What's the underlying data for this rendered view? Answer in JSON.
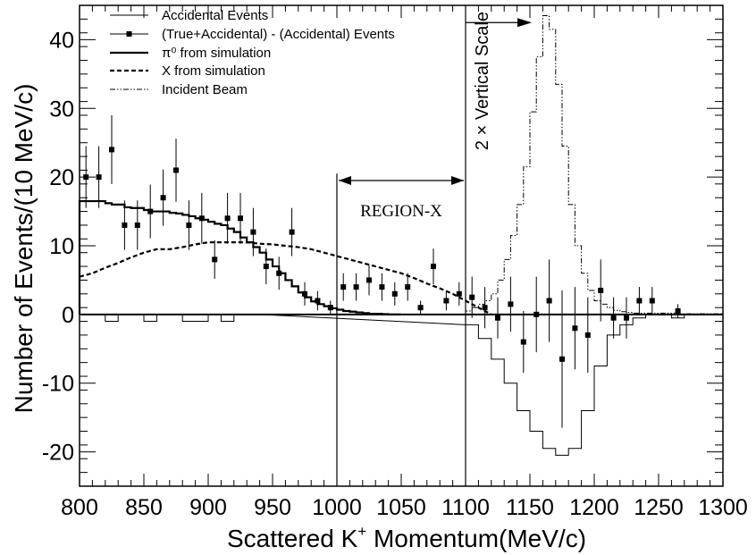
{
  "chart_data": {
    "type": "line",
    "xlabel": "Scattered K",
    "xlabel_sup": "+",
    "xlabel_rest": " Momentum(MeV/c)",
    "ylabel": "Number of Events/(10 MeV/c)",
    "xlim": [
      800,
      1300
    ],
    "ylim": [
      -25,
      45
    ],
    "x_ticks": [
      800,
      850,
      900,
      950,
      1000,
      1050,
      1100,
      1150,
      1200,
      1250,
      1300
    ],
    "y_ticks": [
      -20,
      -10,
      0,
      10,
      20,
      30,
      40
    ],
    "grid": false,
    "legend_position": "top-left",
    "annotations": {
      "region_label": "REGION-X",
      "region_range": [
        1000,
        1100
      ],
      "vertical_scale_label": "2 × Vertical Scale"
    },
    "series": [
      {
        "name": "Accidental Events",
        "style": "thin-solid-histogram",
        "bin_width": 10,
        "x": [
          800,
          810,
          820,
          830,
          840,
          850,
          860,
          870,
          880,
          890,
          900,
          910,
          920,
          930,
          1100,
          1110,
          1120,
          1130,
          1140,
          1150,
          1160,
          1170,
          1180,
          1190,
          1200,
          1210,
          1220,
          1230,
          1240,
          1250,
          1260,
          1270
        ],
        "values": [
          0,
          0,
          -1,
          0,
          0,
          -1,
          0,
          0,
          -1,
          -1,
          0,
          -1,
          0,
          0,
          -1.5,
          -3.5,
          -6.5,
          -10,
          -14,
          -17,
          -19.5,
          -20.5,
          -19.5,
          -14,
          -7.5,
          -3,
          -1.5,
          -0.5,
          0,
          0,
          -0.5,
          0
        ]
      },
      {
        "name": "(True+Accidental) - (Accidental) Events",
        "style": "points-with-errorbars",
        "x": [
          805,
          815,
          825,
          835,
          845,
          855,
          865,
          875,
          885,
          895,
          905,
          915,
          925,
          935,
          945,
          955,
          965,
          975,
          985,
          995,
          1005,
          1015,
          1025,
          1035,
          1045,
          1055,
          1065,
          1075,
          1085,
          1095,
          1105,
          1115,
          1125,
          1135,
          1145,
          1155,
          1165,
          1175,
          1185,
          1195,
          1205,
          1215,
          1225,
          1235,
          1245,
          1265
        ],
        "values": [
          20,
          20,
          24,
          13,
          13,
          15,
          17,
          21,
          13,
          14,
          8,
          14,
          14,
          12,
          7,
          6,
          12,
          3,
          2,
          1,
          4,
          4,
          5,
          4,
          3,
          4,
          1,
          7,
          2,
          3,
          2.5,
          1,
          -0.5,
          1.5,
          -4,
          0,
          2,
          -6.5,
          -2,
          -3,
          3.5,
          -0.5,
          -0.5,
          2,
          2,
          0.5
        ],
        "errors": [
          4.5,
          4.5,
          5,
          3.6,
          3.6,
          3.9,
          4.1,
          4.6,
          3.6,
          3.7,
          2.8,
          3.7,
          3.7,
          3.5,
          2.6,
          2.4,
          3.5,
          1.7,
          1.4,
          1,
          2,
          2,
          2.2,
          2,
          1.7,
          2,
          1,
          2.6,
          1.4,
          1.7,
          3,
          3,
          3,
          4,
          4.5,
          5.5,
          6,
          10,
          6,
          5.5,
          4.5,
          3,
          3,
          2,
          2,
          1
        ]
      },
      {
        "name": "π⁰ from simulation",
        "style": "thick-solid-histogram",
        "bin_width": 5,
        "x": [
          800,
          805,
          810,
          815,
          820,
          825,
          830,
          835,
          840,
          845,
          850,
          855,
          860,
          865,
          870,
          875,
          880,
          885,
          890,
          895,
          900,
          905,
          910,
          915,
          920,
          925,
          930,
          935,
          940,
          945,
          950,
          955,
          960,
          965,
          970,
          975,
          980,
          985,
          990,
          995,
          1000,
          1005,
          1010,
          1015,
          1020,
          1025,
          1030,
          1035,
          1040,
          1045
        ],
        "values": [
          16.5,
          16.5,
          16.5,
          16.5,
          16.2,
          16,
          16,
          15.6,
          15.5,
          15.5,
          15.2,
          15,
          15,
          15,
          14.8,
          14.7,
          14.5,
          14.3,
          14,
          13.8,
          13.5,
          13.2,
          13,
          12.5,
          12,
          11.2,
          10.5,
          9.8,
          9,
          8,
          7,
          6,
          5,
          4.1,
          3.2,
          2.5,
          1.9,
          1.5,
          1.2,
          0.9,
          0.7,
          0.5,
          0.4,
          0.3,
          0.2,
          0.1,
          0.1,
          0.05,
          0,
          0
        ]
      },
      {
        "name": "X from simulation",
        "style": "dashed-line",
        "x": [
          800,
          810,
          820,
          830,
          840,
          850,
          860,
          870,
          880,
          890,
          900,
          910,
          920,
          930,
          940,
          950,
          960,
          970,
          980,
          990,
          1000,
          1010,
          1020,
          1030,
          1040,
          1050,
          1060,
          1070,
          1080,
          1090,
          1100,
          1110,
          1120
        ],
        "values": [
          5.5,
          6,
          6.8,
          7.5,
          8.3,
          9,
          9.5,
          9.5,
          9.8,
          10.2,
          10.5,
          10.5,
          10.5,
          10.5,
          10.3,
          10.2,
          10,
          9.8,
          9.5,
          9,
          8.5,
          8,
          7.5,
          7,
          6.5,
          6,
          5.3,
          4.5,
          3.8,
          3,
          2,
          1,
          0
        ]
      },
      {
        "name": "Incident Beam",
        "style": "dash-dot-histogram",
        "bin_width": 5,
        "x": [
          1100,
          1105,
          1110,
          1115,
          1120,
          1125,
          1130,
          1135,
          1140,
          1145,
          1150,
          1155,
          1160,
          1165,
          1170,
          1175,
          1180,
          1185,
          1190,
          1195,
          1200,
          1205,
          1210,
          1215,
          1220,
          1225,
          1230,
          1235,
          1240,
          1245,
          1250,
          1255,
          1260,
          1265,
          1270,
          1275,
          1280,
          1285,
          1290,
          1295
        ],
        "values": [
          0.5,
          1,
          1.5,
          2,
          3,
          5,
          8,
          11.5,
          16,
          21.5,
          29.5,
          37.5,
          43.5,
          41.5,
          33.5,
          24.5,
          16,
          10,
          6,
          3.5,
          2,
          1.5,
          1,
          0.6,
          0.4,
          0.3,
          0.2,
          0.2,
          0.2,
          0.2,
          0.2,
          0.2,
          0.2,
          0.1,
          0.1,
          0.1,
          0.1,
          0.1,
          0.1,
          0.1
        ]
      }
    ]
  }
}
